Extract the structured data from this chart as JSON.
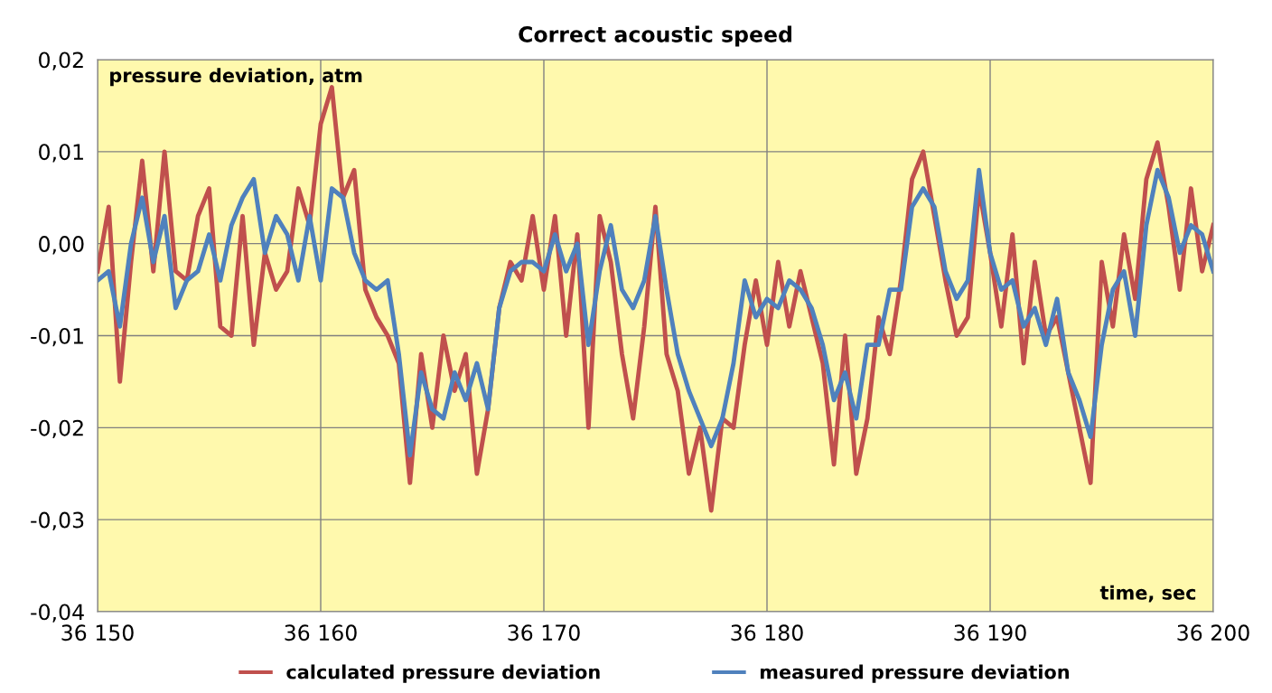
{
  "chart_data": {
    "type": "line",
    "title": "Correct acoustic speed",
    "ylabel": "pressure deviation, atm",
    "xlabel": "time, sec",
    "x": [
      36150,
      36150.5,
      36151,
      36151.5,
      36152,
      36152.5,
      36153,
      36153.5,
      36154,
      36154.5,
      36155,
      36155.5,
      36156,
      36156.5,
      36157,
      36157.5,
      36158,
      36158.5,
      36159,
      36159.5,
      36160,
      36160.5,
      36161,
      36161.5,
      36162,
      36162.5,
      36163,
      36163.5,
      36164,
      36164.5,
      36165,
      36165.5,
      36166,
      36166.5,
      36167,
      36167.5,
      36168,
      36168.5,
      36169,
      36169.5,
      36170,
      36170.5,
      36171,
      36171.5,
      36172,
      36172.5,
      36173,
      36173.5,
      36174,
      36174.5,
      36175,
      36175.5,
      36176,
      36176.5,
      36177,
      36177.5,
      36178,
      36178.5,
      36179,
      36179.5,
      36180,
      36180.5,
      36181,
      36181.5,
      36182,
      36182.5,
      36183,
      36183.5,
      36184,
      36184.5,
      36185,
      36185.5,
      36186,
      36186.5,
      36187,
      36187.5,
      36188,
      36188.5,
      36189,
      36189.5,
      36190,
      36190.5,
      36191,
      36191.5,
      36192,
      36192.5,
      36193,
      36193.5,
      36194,
      36194.5,
      36195,
      36195.5,
      36196,
      36196.5,
      36197,
      36197.5,
      36198,
      36198.5,
      36199,
      36199.5,
      36200
    ],
    "series": [
      {
        "name": "calculated pressure deviation",
        "color": "#c0504d",
        "values": [
          -0.003,
          0.004,
          -0.015,
          -0.002,
          0.009,
          -0.003,
          0.01,
          -0.003,
          -0.004,
          0.003,
          0.006,
          -0.009,
          -0.01,
          0.003,
          -0.011,
          -0.001,
          -0.005,
          -0.003,
          0.006,
          0.002,
          0.013,
          0.017,
          0.005,
          0.008,
          -0.005,
          -0.008,
          -0.01,
          -0.013,
          -0.026,
          -0.012,
          -0.02,
          -0.01,
          -0.016,
          -0.012,
          -0.025,
          -0.018,
          -0.007,
          -0.002,
          -0.004,
          0.003,
          -0.005,
          0.003,
          -0.01,
          0.001,
          -0.02,
          0.003,
          -0.002,
          -0.012,
          -0.019,
          -0.009,
          0.004,
          -0.012,
          -0.016,
          -0.025,
          -0.02,
          -0.029,
          -0.019,
          -0.02,
          -0.011,
          -0.004,
          -0.011,
          -0.002,
          -0.009,
          -0.003,
          -0.008,
          -0.013,
          -0.024,
          -0.01,
          -0.025,
          -0.019,
          -0.008,
          -0.012,
          -0.004,
          0.007,
          0.01,
          0.003,
          -0.004,
          -0.01,
          -0.008,
          0.006,
          -0.001,
          -0.009,
          0.001,
          -0.013,
          -0.002,
          -0.01,
          -0.008,
          -0.014,
          -0.02,
          -0.026,
          -0.002,
          -0.009,
          0.001,
          -0.006,
          0.007,
          0.011,
          0.004,
          -0.005,
          0.006,
          -0.003,
          0.002
        ]
      },
      {
        "name": "measured pressure deviation",
        "color": "#4f81bd",
        "values": [
          -0.004,
          -0.003,
          -0.009,
          0.0,
          0.005,
          -0.002,
          0.003,
          -0.007,
          -0.004,
          -0.003,
          0.001,
          -0.004,
          0.002,
          0.005,
          0.007,
          -0.001,
          0.003,
          0.001,
          -0.004,
          0.003,
          -0.004,
          0.006,
          0.005,
          -0.001,
          -0.004,
          -0.005,
          -0.004,
          -0.012,
          -0.023,
          -0.014,
          -0.018,
          -0.019,
          -0.014,
          -0.017,
          -0.013,
          -0.018,
          -0.007,
          -0.003,
          -0.002,
          -0.002,
          -0.003,
          0.001,
          -0.003,
          0.0,
          -0.011,
          -0.003,
          0.002,
          -0.005,
          -0.007,
          -0.004,
          0.003,
          -0.005,
          -0.012,
          -0.016,
          -0.019,
          -0.022,
          -0.019,
          -0.013,
          -0.004,
          -0.008,
          -0.006,
          -0.007,
          -0.004,
          -0.005,
          -0.007,
          -0.011,
          -0.017,
          -0.014,
          -0.019,
          -0.011,
          -0.011,
          -0.005,
          -0.005,
          0.004,
          0.006,
          0.004,
          -0.003,
          -0.006,
          -0.004,
          0.008,
          -0.001,
          -0.005,
          -0.004,
          -0.009,
          -0.007,
          -0.011,
          -0.006,
          -0.014,
          -0.017,
          -0.021,
          -0.011,
          -0.005,
          -0.003,
          -0.01,
          0.002,
          0.008,
          0.005,
          -0.001,
          0.002,
          0.001,
          -0.003
        ]
      }
    ],
    "xlim": [
      36150,
      36200
    ],
    "xticks": [
      {
        "value": 36150,
        "label": "36 150"
      },
      {
        "value": 36160,
        "label": "36 160"
      },
      {
        "value": 36170,
        "label": "36 170"
      },
      {
        "value": 36180,
        "label": "36 180"
      },
      {
        "value": 36190,
        "label": "36 190"
      },
      {
        "value": 36200,
        "label": "36 200"
      }
    ],
    "ylim": [
      -0.04,
      0.02
    ],
    "yticks": [
      {
        "value": -0.04,
        "label": "-0,04"
      },
      {
        "value": -0.03,
        "label": "-0,03"
      },
      {
        "value": -0.02,
        "label": "-0,02"
      },
      {
        "value": -0.01,
        "label": "-0,01"
      },
      {
        "value": 0,
        "label": "0,00"
      },
      {
        "value": 0.01,
        "label": "0,01"
      },
      {
        "value": 0.02,
        "label": "0,02"
      }
    ],
    "grid": true,
    "legend": "bottom",
    "line_style": "solid",
    "marker": "none"
  }
}
